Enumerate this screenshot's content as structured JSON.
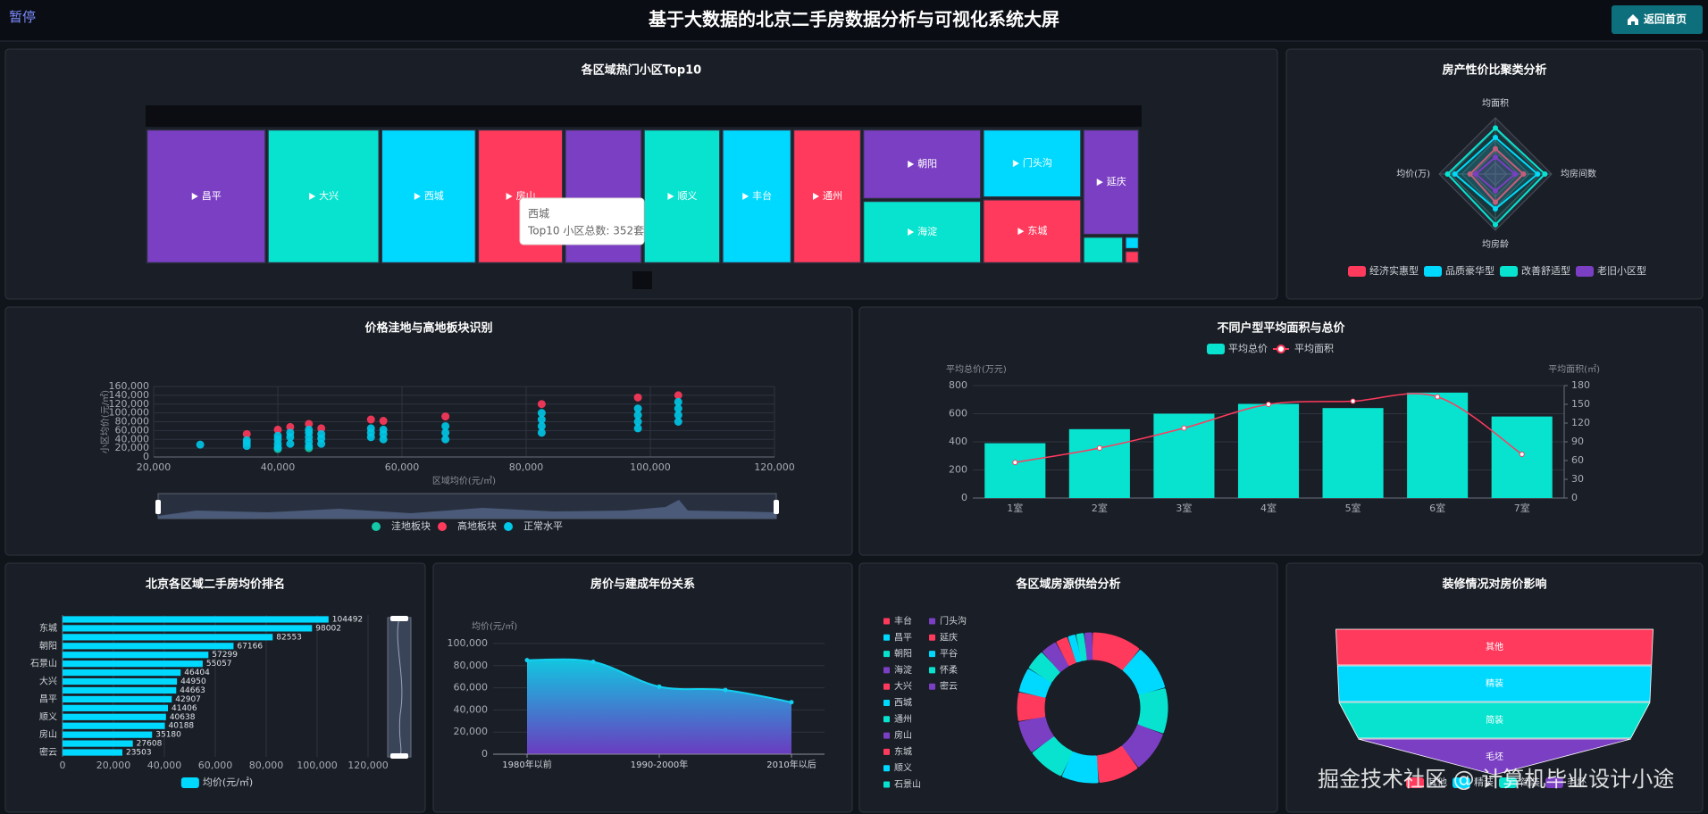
{
  "header": {
    "pause": "暂停",
    "title": "基于大数据的北京二手房数据分析与可视化系统大屏",
    "button": "返回首页"
  },
  "watermark": "掘金技术社区 @ 计算机毕业设计小途",
  "chart_data": [
    {
      "type": "treemap",
      "title": "各区域热门小区Top10",
      "categories": [
        "昌平",
        "大兴",
        "西城",
        "房山",
        null,
        "顺义",
        "丰台",
        "通州",
        "朝阳",
        "海淀",
        "门头沟",
        "东城",
        "延庆",
        null,
        null,
        null
      ],
      "values": [
        441,
        414,
        352,
        317,
        287,
        286,
        259,
        254,
        230,
        207,
        188,
        177,
        166,
        32,
        6,
        6
      ],
      "colors": [
        "#7b3fc4",
        "#08e3cf",
        "#00d9ff",
        "#ff3a5c",
        "#7b3fc4",
        "#08e3cf",
        "#00d9ff",
        "#ff3a5c",
        "#7b3fc4",
        "#08e3cf",
        "#00d9ff",
        "#ff3a5c",
        "#7b3fc4",
        "#08e3cf",
        "#00d9ff",
        "#ff3a5c"
      ],
      "tooltip": {
        "name": "西城",
        "text": "Top10 小区总数: 352套"
      }
    },
    {
      "type": "radar",
      "title": "房产性价比聚类分析",
      "indicators": [
        "均面积",
        "均房间数",
        "均房龄",
        "均价(万)"
      ],
      "series": [
        {
          "name": "经济实惠型",
          "color": "#ff3a5c",
          "values": [
            0.45,
            0.5,
            0.5,
            0.45
          ]
        },
        {
          "name": "品质豪华型",
          "color": "#00d9ff",
          "values": [
            0.65,
            0.75,
            0.62,
            0.72
          ]
        },
        {
          "name": "改善舒适型",
          "color": "#08e3cf",
          "values": [
            0.82,
            0.88,
            0.9,
            0.85
          ]
        },
        {
          "name": "老旧小区型",
          "color": "#7b3fc4",
          "values": [
            0.3,
            0.35,
            0.3,
            0.35
          ]
        }
      ]
    },
    {
      "type": "scatter",
      "title": "价格洼地与高地板块识别",
      "xlabel": "区域均价(元/㎡)",
      "ylabel": "小区均价(元/㎡)",
      "xlim": [
        20000,
        120000
      ],
      "xticks": [
        {
          "value": 20000,
          "label": "20,000"
        },
        {
          "value": 40000,
          "label": "40,000"
        },
        {
          "value": 60000,
          "label": "60,000"
        },
        {
          "value": 80000,
          "label": "80,000"
        },
        {
          "value": 100000,
          "label": "100,000"
        },
        {
          "value": 120000,
          "label": "120,000"
        }
      ],
      "ylim": [
        0,
        160000
      ],
      "yticks": [
        0,
        {
          "value": 20000,
          "label": "20,000"
        },
        {
          "value": 40000,
          "label": "40,000"
        },
        {
          "value": 60000,
          "label": "60,000"
        },
        {
          "value": 80000,
          "label": "80,000"
        },
        {
          "value": 100000,
          "label": "100,000"
        },
        {
          "value": 120000,
          "label": "120,000"
        },
        {
          "value": 140000,
          "label": "140,000"
        },
        {
          "value": 160000,
          "label": "160,000"
        }
      ],
      "series": [
        {
          "name": "洼地板块",
          "color": "#14c8a8",
          "x": [
            40000,
            45000
          ],
          "values": [
            18000,
            20000
          ]
        },
        {
          "name": "高地板块",
          "color": "#ff3a5c",
          "x": [
            35000,
            40000,
            42000,
            45000,
            47000,
            55000,
            57000,
            67000,
            82500,
            98000,
            104500
          ],
          "values": [
            52000,
            62000,
            68000,
            75000,
            65000,
            85000,
            82000,
            92000,
            120000,
            135000,
            140000
          ]
        },
        {
          "name": "正常水平",
          "color": "#00c8e8",
          "x": [
            27500,
            35000,
            35000,
            35000,
            40000,
            40000,
            40000,
            40000,
            42000,
            42000,
            42000,
            45000,
            45000,
            45000,
            45000,
            45000,
            47000,
            47000,
            47000,
            55000,
            55000,
            55000,
            57000,
            57000,
            57000,
            67000,
            67000,
            67000,
            82500,
            82500,
            82500,
            82500,
            98000,
            98000,
            98000,
            98000,
            104500,
            104500,
            104500,
            104500
          ],
          "values": [
            28000,
            25000,
            32000,
            38000,
            22000,
            30000,
            40000,
            48000,
            30000,
            45000,
            55000,
            25000,
            35000,
            45000,
            55000,
            62000,
            30000,
            42000,
            52000,
            45000,
            55000,
            65000,
            40000,
            52000,
            62000,
            40000,
            55000,
            70000,
            55000,
            70000,
            85000,
            100000,
            65000,
            80000,
            95000,
            110000,
            80000,
            95000,
            110000,
            125000
          ]
        }
      ]
    },
    {
      "type": "bar_line",
      "title": "不同户型平均面积与总价",
      "ylabel": "平均总价(万元)",
      "y2label": "平均面积(㎡)",
      "categories": [
        "1室",
        "2室",
        "3室",
        "4室",
        "5室",
        "6室",
        "7室"
      ],
      "ylim": [
        0,
        800
      ],
      "yticks": [
        0,
        200,
        400,
        600,
        800
      ],
      "y2lim": [
        0,
        180
      ],
      "y2ticks": [
        0,
        30,
        60,
        90,
        120,
        150,
        180
      ],
      "series": [
        {
          "name": "平均总价",
          "color": "#08e3cf",
          "values": [
            390,
            490,
            600,
            670,
            640,
            750,
            580
          ]
        },
        {
          "name": "平均面积",
          "color": "#ff3a5c",
          "axis": "y2",
          "values": [
            57,
            80,
            112,
            150,
            155,
            162,
            70
          ]
        }
      ]
    },
    {
      "type": "hbar",
      "title": "北京各区域二手房均价排名",
      "legend": "均价(元/㎡)",
      "color": "#00d9ff",
      "categories": [
        null,
        "东城",
        null,
        "朝阳",
        null,
        "石景山",
        null,
        "大兴",
        null,
        "昌平",
        null,
        "顺义",
        null,
        "房山",
        null,
        "密云"
      ],
      "values": [
        104492,
        98002,
        82553,
        67166,
        57299,
        55057,
        46404,
        44950,
        44663,
        42907,
        41406,
        40638,
        40188,
        35180,
        27608,
        23503
      ],
      "xlim": [
        0,
        120000
      ],
      "xticks": [
        0,
        {
          "value": 20000,
          "label": "20,000"
        },
        {
          "value": 40000,
          "label": "40,000"
        },
        {
          "value": 60000,
          "label": "60,000"
        },
        {
          "value": 80000,
          "label": "80,000"
        },
        {
          "value": 100000,
          "label": "100,000"
        },
        {
          "value": 120000,
          "label": "120,000"
        }
      ]
    },
    {
      "type": "area",
      "title": "房价与建成年份关系",
      "ylabel": "均价(元/㎡)",
      "categories": [
        "1980年以前",
        null,
        "1990-2000年",
        null,
        "2010年以后"
      ],
      "values": [
        85000,
        83500,
        61000,
        58000,
        47000
      ],
      "ylim": [
        0,
        100000
      ],
      "yticks": [
        0,
        {
          "value": 20000,
          "label": "20,000"
        },
        {
          "value": 40000,
          "label": "40,000"
        },
        {
          "value": 60000,
          "label": "60,000"
        },
        {
          "value": 80000,
          "label": "80,000"
        },
        {
          "value": 100000,
          "label": "100,000"
        }
      ]
    },
    {
      "type": "donut",
      "title": "各区域房源供给分析",
      "categories": [
        "丰台",
        "昌平",
        "朝阳",
        "海淀",
        "大兴",
        "西城",
        "通州",
        "房山",
        "东城",
        "顺义",
        "石景山",
        "门头沟",
        "延庆",
        "平谷",
        "怀柔",
        "密云"
      ],
      "values": [
        12,
        11,
        11,
        10,
        10,
        9,
        9,
        8,
        7,
        6,
        5,
        4,
        3,
        2,
        2,
        2
      ],
      "colors": [
        "#ff3a5c",
        "#00d9ff",
        "#08e3cf",
        "#7b3fc4",
        "#ff3a5c",
        "#00d9ff",
        "#08e3cf",
        "#7b3fc4",
        "#ff3a5c",
        "#00d9ff",
        "#08e3cf",
        "#7b3fc4",
        "#ff3a5c",
        "#00d9ff",
        "#08e3cf",
        "#7b3fc4"
      ]
    },
    {
      "type": "funnel",
      "title": "装修情况对房价影响",
      "categories": [
        "其他",
        "精装",
        "简装",
        "毛坯"
      ],
      "values": [
        100,
        99,
        98,
        86
      ],
      "colors": [
        "#ff3a5c",
        "#00d9ff",
        "#08e3cf",
        "#7b3fc4"
      ]
    }
  ]
}
